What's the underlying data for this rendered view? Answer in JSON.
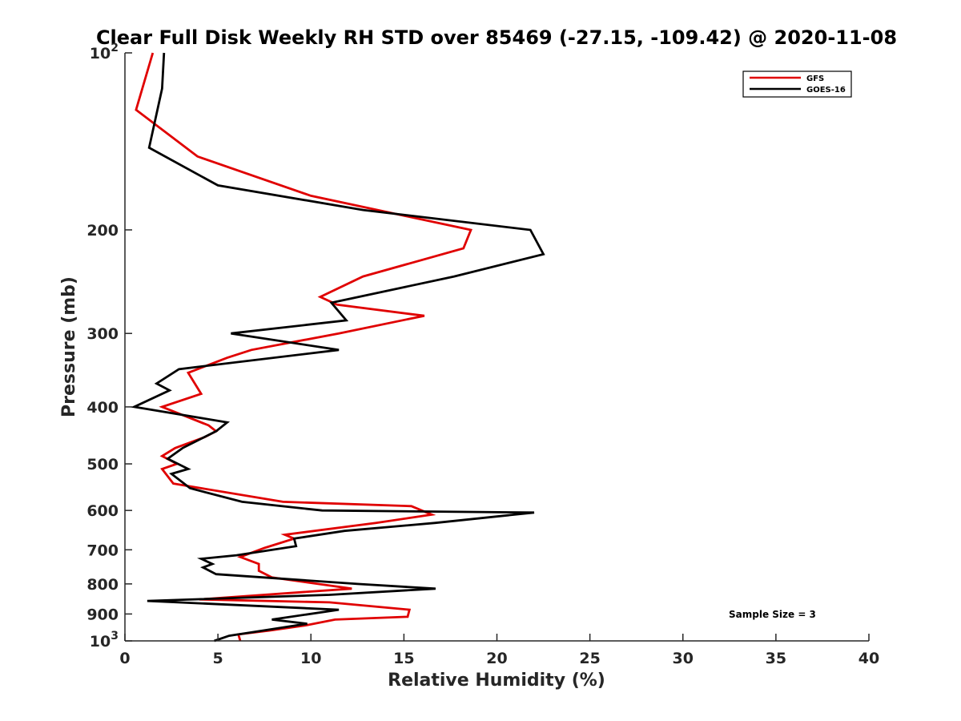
{
  "chart_data": {
    "type": "line",
    "title": "Clear Full Disk Weekly RH STD over 85469 (-27.15, -109.42) @ 2020-11-08",
    "xlabel": "Relative Humidity (%)",
    "ylabel": "Pressure (mb)",
    "xlim": [
      0,
      40
    ],
    "ylim": [
      100,
      1000
    ],
    "y_scale": "log",
    "y_reversed": true,
    "x_ticks": [
      "0",
      "5",
      "10",
      "15",
      "20",
      "25",
      "30",
      "35",
      "40"
    ],
    "y_ticks": [
      {
        "value": 100,
        "base": "10",
        "exp": "2"
      },
      {
        "value": 200,
        "label": "200"
      },
      {
        "value": 300,
        "label": "300"
      },
      {
        "value": 400,
        "label": "400"
      },
      {
        "value": 500,
        "label": "500"
      },
      {
        "value": 600,
        "label": "600"
      },
      {
        "value": 700,
        "label": "700"
      },
      {
        "value": 800,
        "label": "800"
      },
      {
        "value": 900,
        "label": "900"
      },
      {
        "value": 1000,
        "base": "10",
        "exp": "3"
      }
    ],
    "grid": false,
    "legend_position": "top-right",
    "annotation": "Sample Size = 3",
    "series": [
      {
        "name": "GFS",
        "color": "#e00000",
        "points": [
          [
            1.5,
            100
          ],
          [
            0.6,
            125
          ],
          [
            3.9,
            150
          ],
          [
            10.0,
            175
          ],
          [
            18.6,
            200
          ],
          [
            18.2,
            215
          ],
          [
            12.8,
            240
          ],
          [
            10.5,
            260
          ],
          [
            11.4,
            268
          ],
          [
            16.1,
            280
          ],
          [
            11.5,
            300
          ],
          [
            6.8,
            320
          ],
          [
            5.5,
            330
          ],
          [
            3.4,
            350
          ],
          [
            4.1,
            380
          ],
          [
            2.0,
            400
          ],
          [
            4.5,
            430
          ],
          [
            4.9,
            440
          ],
          [
            4.3,
            450
          ],
          [
            2.7,
            470
          ],
          [
            2.0,
            485
          ],
          [
            2.8,
            500
          ],
          [
            2.0,
            510
          ],
          [
            2.6,
            540
          ],
          [
            8.5,
            580
          ],
          [
            15.4,
            590
          ],
          [
            16.5,
            610
          ],
          [
            13.5,
            630
          ],
          [
            8.6,
            660
          ],
          [
            9.1,
            670
          ],
          [
            7.5,
            695
          ],
          [
            6.2,
            720
          ],
          [
            7.2,
            740
          ],
          [
            7.2,
            760
          ],
          [
            7.9,
            780
          ],
          [
            12.2,
            815
          ],
          [
            4.0,
            850
          ],
          [
            11.0,
            860
          ],
          [
            15.3,
            885
          ],
          [
            15.2,
            910
          ],
          [
            11.3,
            920
          ],
          [
            9.8,
            940
          ],
          [
            7.8,
            960
          ],
          [
            6.1,
            975
          ],
          [
            6.2,
            1000
          ]
        ]
      },
      {
        "name": "GOES-16",
        "color": "#000000",
        "points": [
          [
            2.1,
            100
          ],
          [
            2.0,
            115
          ],
          [
            1.3,
            145
          ],
          [
            5.0,
            168
          ],
          [
            12.8,
            185
          ],
          [
            21.8,
            200
          ],
          [
            22.5,
            220
          ],
          [
            17.7,
            240
          ],
          [
            11.1,
            266
          ],
          [
            11.9,
            285
          ],
          [
            5.7,
            300
          ],
          [
            11.5,
            320
          ],
          [
            2.9,
            345
          ],
          [
            1.7,
            365
          ],
          [
            2.4,
            375
          ],
          [
            0.5,
            400
          ],
          [
            5.5,
            425
          ],
          [
            4.9,
            440
          ],
          [
            3.1,
            470
          ],
          [
            2.3,
            490
          ],
          [
            3.4,
            510
          ],
          [
            2.5,
            520
          ],
          [
            3.5,
            550
          ],
          [
            6.3,
            580
          ],
          [
            10.6,
            600
          ],
          [
            22.0,
            605
          ],
          [
            16.7,
            630
          ],
          [
            11.8,
            650
          ],
          [
            9.1,
            670
          ],
          [
            9.2,
            690
          ],
          [
            6.0,
            715
          ],
          [
            4.1,
            725
          ],
          [
            4.7,
            740
          ],
          [
            4.2,
            750
          ],
          [
            4.9,
            770
          ],
          [
            12.5,
            800
          ],
          [
            16.7,
            815
          ],
          [
            11.0,
            835
          ],
          [
            1.2,
            855
          ],
          [
            11.5,
            885
          ],
          [
            7.9,
            920
          ],
          [
            9.8,
            935
          ],
          [
            7.0,
            965
          ],
          [
            5.6,
            980
          ],
          [
            4.8,
            1000
          ]
        ]
      }
    ]
  }
}
